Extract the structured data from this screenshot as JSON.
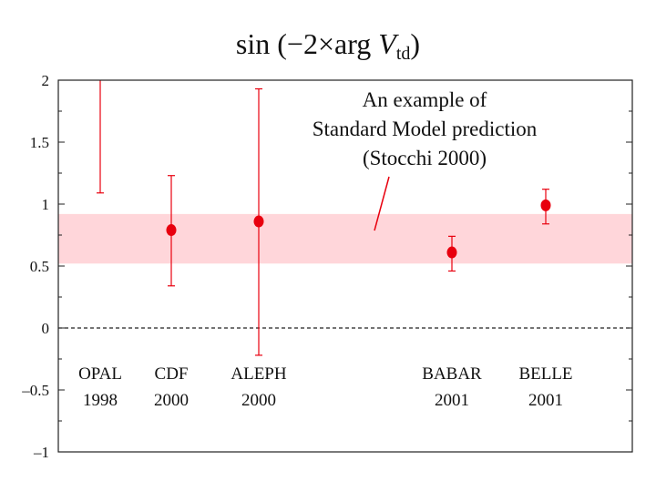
{
  "chart_data": {
    "type": "scatter",
    "title": {
      "prefix": "sin (−2×arg ",
      "variable": "V",
      "subscript": "td",
      "suffix": ")"
    },
    "ylim": [
      -1,
      2
    ],
    "yticks": [
      2,
      1.5,
      1,
      0.5,
      0,
      -0.5,
      -1
    ],
    "ytick_labels": [
      "2",
      "1.5",
      "1",
      "0.5",
      "0",
      "–0.5",
      "–1"
    ],
    "zero_line": {
      "y": 0,
      "style": "dashed"
    },
    "band": {
      "low": 0.52,
      "high": 0.92,
      "color": "#ffd6da"
    },
    "annotation": {
      "lines": [
        "An example of",
        "Standard Model prediction",
        "(Stocchi 2000)"
      ]
    },
    "series_color": "#e8000e",
    "points": [
      {
        "experiment": "OPAL",
        "year": "1998",
        "y": null,
        "low": 1.09,
        "high": 2.0,
        "clipped_top": true
      },
      {
        "experiment": "CDF",
        "year": "2000",
        "y": 0.79,
        "low": 0.34,
        "high": 1.23
      },
      {
        "experiment": "ALEPH",
        "year": "2000",
        "y": 0.86,
        "low": -0.22,
        "high": 1.93
      },
      {
        "experiment": "BABAR",
        "year": "2001",
        "y": 0.61,
        "low": 0.46,
        "high": 0.74
      },
      {
        "experiment": "BELLE",
        "year": "2001",
        "y": 0.99,
        "low": 0.84,
        "high": 1.12
      }
    ]
  }
}
